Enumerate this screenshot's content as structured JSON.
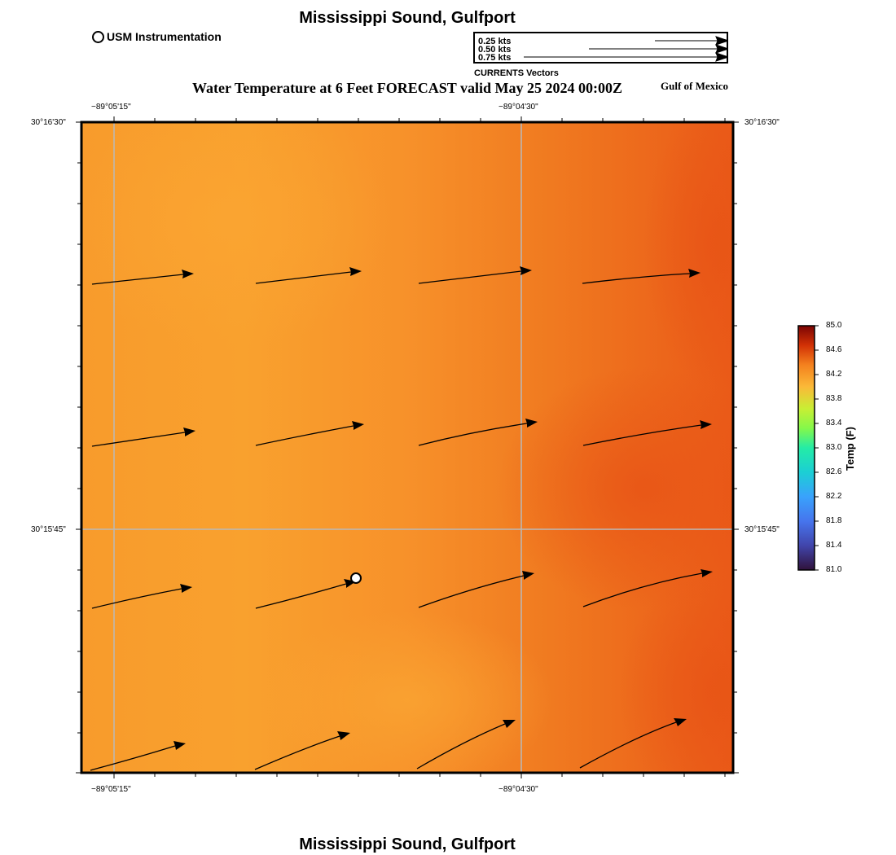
{
  "header": {
    "title": "Mississippi Sound, Gulfport",
    "usm_label": "USM Instrumentation",
    "forecast_title": "Water Temperature at 6 Feet FORECAST valid May 25 2024 00:00Z",
    "region": "Gulf of Mexico"
  },
  "vector_legend": {
    "items": [
      "0.25 kts",
      "0.50 kts",
      "0.75 kts"
    ],
    "caption": "CURRENTS Vectors"
  },
  "footer": {
    "title": "Mississippi Sound, Gulfport"
  },
  "axes": {
    "lon_ticks": [
      "−89°05'15\"",
      "−89°04'30\""
    ],
    "lat_ticks": [
      "30°16'30\"",
      "30°15'45\""
    ]
  },
  "colorbar": {
    "title": "Temp (F)",
    "min": 81.0,
    "max": 85.0,
    "labels": [
      "85.0",
      "84.6",
      "84.2",
      "83.8",
      "83.4",
      "83.0",
      "82.6",
      "82.2",
      "81.8",
      "81.4",
      "81.0"
    ]
  },
  "colors": {
    "field_light": "#f9a12e",
    "field_mid": "#f78a24",
    "field_dark": "#ec5818",
    "grid": "#b9b9b9"
  },
  "chart_data": {
    "type": "heatmap",
    "title": "Water Temperature at 6 Feet FORECAST valid May 25 2024 00:00Z",
    "units": "Temp (F)",
    "value_range": [
      81.0,
      85.0
    ],
    "temperature_approx": {
      "west": 84.0,
      "east": 84.5
    },
    "station": {
      "name": "USM Instrumentation",
      "lon_label": "−89°04'49\"",
      "lat_label": "30°15'39\""
    },
    "current_vectors": [
      {
        "row": 1,
        "col": 1,
        "speed_kts": 0.38,
        "bearing_deg": 84
      },
      {
        "row": 1,
        "col": 2,
        "speed_kts": 0.39,
        "bearing_deg": 83
      },
      {
        "row": 1,
        "col": 3,
        "speed_kts": 0.42,
        "bearing_deg": 83
      },
      {
        "row": 1,
        "col": 4,
        "speed_kts": 0.45,
        "bearing_deg": 85
      },
      {
        "row": 2,
        "col": 1,
        "speed_kts": 0.39,
        "bearing_deg": 81
      },
      {
        "row": 2,
        "col": 2,
        "speed_kts": 0.41,
        "bearing_deg": 79
      },
      {
        "row": 2,
        "col": 3,
        "speed_kts": 0.45,
        "bearing_deg": 78
      },
      {
        "row": 2,
        "col": 4,
        "speed_kts": 0.48,
        "bearing_deg": 79
      },
      {
        "row": 3,
        "col": 1,
        "speed_kts": 0.38,
        "bearing_deg": 76
      },
      {
        "row": 3,
        "col": 2,
        "speed_kts": 0.39,
        "bearing_deg": 73
      },
      {
        "row": 3,
        "col": 3,
        "speed_kts": 0.45,
        "bearing_deg": 72
      },
      {
        "row": 3,
        "col": 4,
        "speed_kts": 0.51,
        "bearing_deg": 73
      },
      {
        "row": 4,
        "col": 1,
        "speed_kts": 0.37,
        "bearing_deg": 72
      },
      {
        "row": 4,
        "col": 2,
        "speed_kts": 0.38,
        "bearing_deg": 68
      },
      {
        "row": 4,
        "col": 3,
        "speed_kts": 0.4,
        "bearing_deg": 64
      },
      {
        "row": 4,
        "col": 4,
        "speed_kts": 0.46,
        "bearing_deg": 64
      }
    ]
  }
}
